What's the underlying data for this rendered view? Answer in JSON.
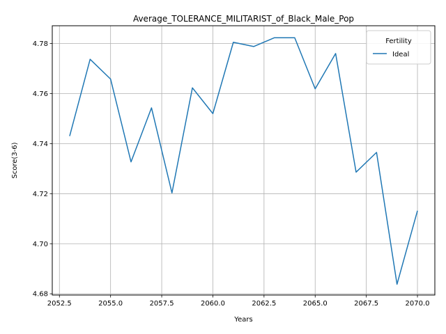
{
  "chart_data": {
    "type": "line",
    "title": "Average_TOLERANCE_MILITARIST_of_Black_Male_Pop",
    "xlabel": "Years",
    "ylabel": "Score(3-6)",
    "xlim": [
      2052.15,
      2070.85
    ],
    "ylim": [
      4.6795,
      4.7871
    ],
    "xticks": [
      2052.5,
      2055.0,
      2057.5,
      2060.0,
      2062.5,
      2065.0,
      2067.5,
      2070.0
    ],
    "xtick_labels": [
      "2052.5",
      "2055.0",
      "2057.5",
      "2060.0",
      "2062.5",
      "2065.0",
      "2067.5",
      "2070.0"
    ],
    "yticks": [
      4.68,
      4.7,
      4.72,
      4.74,
      4.76,
      4.78
    ],
    "ytick_labels": [
      "4.68",
      "4.70",
      "4.72",
      "4.74",
      "4.76",
      "4.78"
    ],
    "grid": true,
    "legend": {
      "title": "Fertility",
      "placement": "top-right"
    },
    "series": [
      {
        "name": "Ideal",
        "color": "#1f77b4",
        "x": [
          2053,
          2054,
          2055,
          2056,
          2057,
          2058,
          2059,
          2060,
          2061,
          2062,
          2063,
          2064,
          2065,
          2066,
          2067,
          2068,
          2069,
          2070
        ],
        "y": [
          4.743,
          4.7737,
          4.7658,
          4.7327,
          4.7543,
          4.7203,
          4.7623,
          4.752,
          4.7805,
          4.7788,
          4.7823,
          4.7823,
          4.7619,
          4.776,
          4.7286,
          4.7365,
          4.6838,
          4.7132
        ]
      }
    ]
  }
}
